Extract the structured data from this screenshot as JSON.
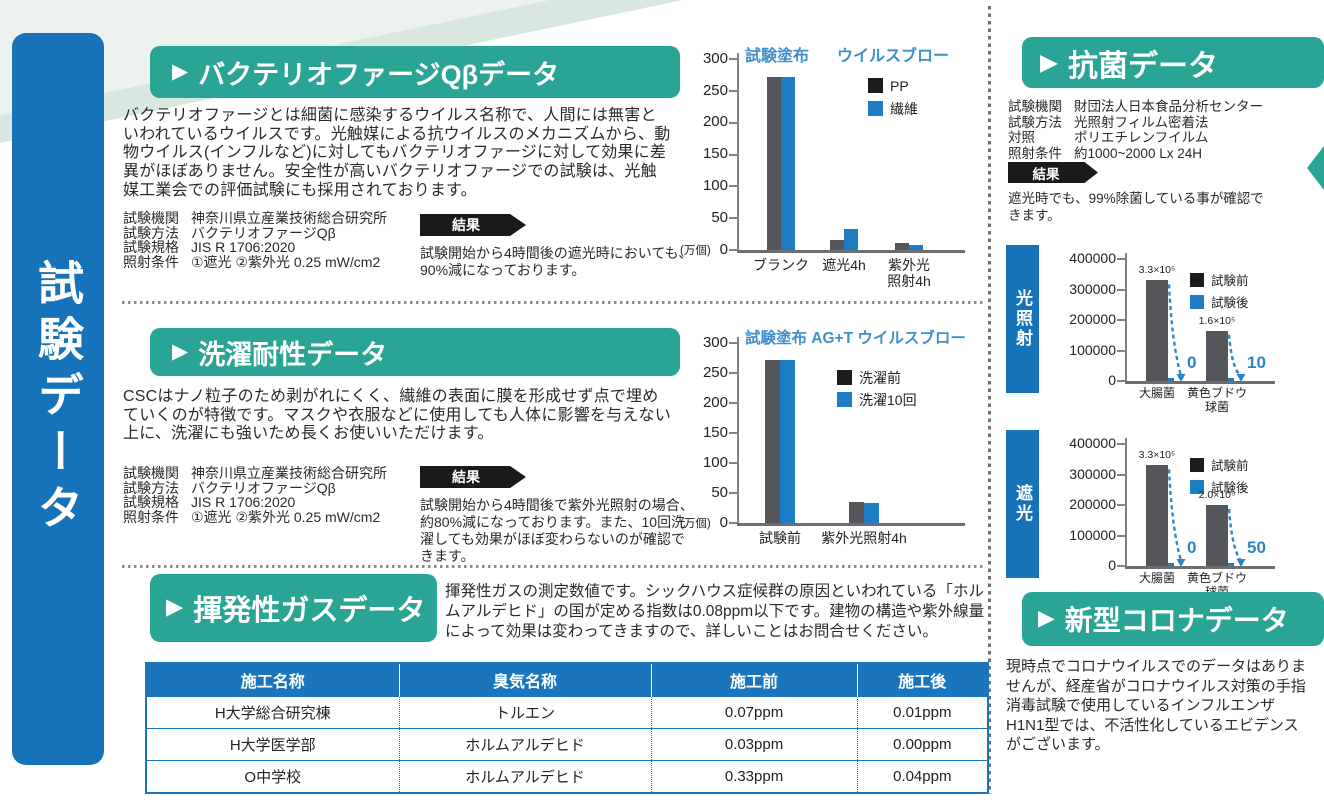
{
  "icons": {
    "arrow": "▶"
  },
  "colors": {
    "teal": "#2aa495",
    "banner_blue": "#1673b9",
    "table_blue": "#1a75bc",
    "chart_bar_blue": "#1d7dc4",
    "chart_title_blue": "#3f8fcb",
    "arrow_blue": "#2a85c8",
    "bar_gray": "#55565a",
    "badge_black": "#1a1a1a"
  },
  "sidebar": {
    "title": "試験データ"
  },
  "sections": {
    "bacteriophage": {
      "title": "バクテリオファージQβデータ",
      "body": "バクテリオファージとは細菌に感染するウイルス名称で、人間には無害といわれているウイルスです。光触媒による抗ウイルスのメカニズムから、動物ウイルス(インフルなど)に対してもバクテリオファージに対して効果に差異がほぼありません。安全性が高いバクテリオファージでの試験は、光触媒工業会での評価試験にも採用されております。",
      "specs": [
        {
          "label": "試験機関",
          "value": "神奈川県立産業技術総合研究所"
        },
        {
          "label": "試験方法",
          "value": "バクテリオファージQβ"
        },
        {
          "label": "試験規格",
          "value": "JIS R 1706:2020"
        },
        {
          "label": "照射条件",
          "value": "①遮光 ②紫外光 0.25 mW/cm2"
        }
      ],
      "result_label": "結果",
      "result_text": "試験開始から4時間後の遮光時においても、90%減になっております。"
    },
    "laundry": {
      "title": "洗濯耐性データ",
      "body": "CSCはナノ粒子のため剥がれにくく、繊維の表面に膜を形成せず点で埋めていくのが特徴です。マスクや衣服などに使用しても人体に影響を与えない上に、洗濯にも強いため長くお使いいただけます。",
      "specs": [
        {
          "label": "試験機関",
          "value": "神奈川県立産業技術総合研究所"
        },
        {
          "label": "試験方法",
          "value": "バクテリオファージQβ"
        },
        {
          "label": "試験規格",
          "value": "JIS R 1706:2020"
        },
        {
          "label": "照射条件",
          "value": "①遮光 ②紫外光 0.25 mW/cm2"
        }
      ],
      "result_label": "結果",
      "result_text": "試験開始から4時間後で紫外光照射の場合、約80%減になっております。また、10回洗濯しても効果がほぼ変わらないのが確認できます。"
    },
    "gas": {
      "title": "揮発性ガスデータ",
      "body": "揮発性ガスの測定数値です。シックハウス症候群の原因といわれている「ホルムアルデヒド」の国が定める指数は0.08ppm以下です。建物の構造や紫外線量によって効果は変わってきますので、詳しいことはお問合せください。",
      "table": {
        "headers": [
          "施工名称",
          "臭気名称",
          "施工前",
          "施工後"
        ],
        "rows": [
          [
            "H大学総合研究棟",
            "トルエン",
            "0.07ppm",
            "0.01ppm"
          ],
          [
            "H大学医学部",
            "ホルムアルデヒド",
            "0.03ppm",
            "0.00ppm"
          ],
          [
            "O中学校",
            "ホルムアルデヒド",
            "0.33ppm",
            "0.04ppm"
          ]
        ]
      }
    },
    "antibacterial": {
      "title": "抗菌データ",
      "specs": [
        {
          "label": "試験機関",
          "value": "財団法人日本食品分析センター"
        },
        {
          "label": "試験方法",
          "value": "光照射フィルム密着法"
        },
        {
          "label": "対照",
          "value": "ポリエチレンフイルム"
        },
        {
          "label": "照射条件",
          "value": "約1000~2000 Lx 24H"
        }
      ],
      "result_label": "結果",
      "result_text": "遮光時でも、99%除菌している事が確認できます。"
    },
    "corona": {
      "title": "新型コロナデータ",
      "body": "現時点でコロナウイルスでのデータはありませんが、経産省がコロナウイルス対策の手指消毒試験で使用しているインフルエンザH1N1型では、不活性化しているエビデンスがございます。"
    }
  },
  "chart_data": [
    {
      "id": "bacteriophage-virus-blow",
      "type": "bar",
      "titles": [
        "試験塗布",
        "ウイルスブロー"
      ],
      "unit_label": "(万個)",
      "categories": [
        "ブランク",
        "遮光4h",
        "紫外光\n照射4h"
      ],
      "series": [
        {
          "name": "PP",
          "values": [
            272,
            15,
            11
          ]
        },
        {
          "name": "繊維",
          "values": [
            272,
            33,
            8
          ]
        }
      ],
      "ylim": [
        0,
        300
      ],
      "ytick_step": 50,
      "legend_position": "right",
      "grid": false
    },
    {
      "id": "laundry-durability",
      "type": "bar",
      "titles": [
        "試験塗布 AG+T ウイルスブロー"
      ],
      "unit_label": "(万個)",
      "categories": [
        "試験前",
        "紫外光照射4h"
      ],
      "series": [
        {
          "name": "洗濯前",
          "values": [
            272,
            35
          ]
        },
        {
          "name": "洗濯10回",
          "values": [
            272,
            33
          ]
        }
      ],
      "ylim": [
        0,
        300
      ],
      "ytick_step": 50,
      "legend_position": "right",
      "grid": false
    },
    {
      "id": "antibacterial-light-irradiation",
      "type": "bar",
      "side_label": "光照射",
      "categories": [
        "大腸菌",
        "黄色ブドウ\n球菌"
      ],
      "series": [
        {
          "name": "試験前",
          "values": [
            330000,
            165000
          ]
        },
        {
          "name": "試験後",
          "values": [
            0,
            10
          ]
        }
      ],
      "bar_annotations": [
        "3.3×10⁵",
        "1.6×10⁵"
      ],
      "arrow_labels": [
        "0",
        "10"
      ],
      "ylim": [
        0,
        400000
      ],
      "ytick_step": 100000,
      "legend_position": "right",
      "grid": false
    },
    {
      "id": "antibacterial-shaded",
      "type": "bar",
      "side_label": "遮光",
      "categories": [
        "大腸菌",
        "黄色ブドウ\n球菌"
      ],
      "series": [
        {
          "name": "試験前",
          "values": [
            330000,
            200000
          ]
        },
        {
          "name": "試験後",
          "values": [
            0,
            50
          ]
        }
      ],
      "bar_annotations": [
        "3.3×10⁵",
        "2.0×10⁵"
      ],
      "arrow_labels": [
        "0",
        "50"
      ],
      "ylim": [
        0,
        400000
      ],
      "ytick_step": 100000,
      "legend_position": "right",
      "grid": false
    }
  ]
}
